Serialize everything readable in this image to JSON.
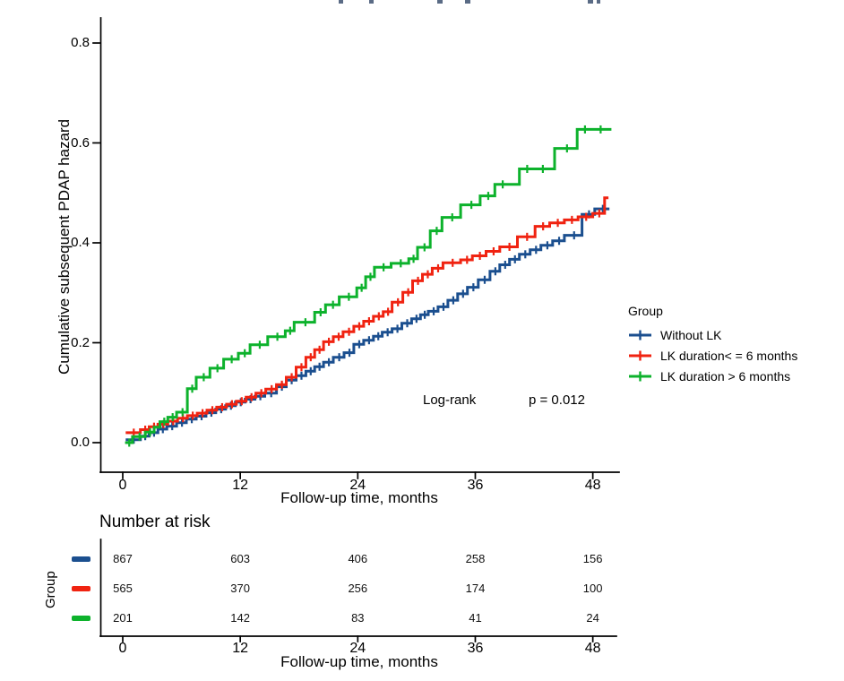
{
  "chart_data": {
    "type": "line",
    "subtype": "step_cumulative_hazard_km",
    "title": "",
    "ylabel": "Cumulative subsequent PDAP hazard",
    "xlabel": "Follow-up time, months",
    "xlim": [
      0,
      50
    ],
    "ylim": [
      0,
      0.8
    ],
    "xticks": [
      0,
      12,
      24,
      36,
      48
    ],
    "yticks": [
      "0.0",
      "0.2",
      "0.4",
      "0.6",
      "0.8"
    ],
    "grid": false,
    "legend_title": "Group",
    "legend_position": "right",
    "annotation": {
      "logrank_label": "Log-rank",
      "p_label": "p = 0.012"
    },
    "series": [
      {
        "name": "Without LK",
        "color": "#1B4F8F",
        "at_risk": [
          867,
          603,
          406,
          258,
          156
        ],
        "t_end": 49.7,
        "steps": [
          [
            0.3,
            0.006
          ],
          [
            1.8,
            0.013
          ],
          [
            2.7,
            0.02
          ],
          [
            3.6,
            0.027
          ],
          [
            4.5,
            0.033
          ],
          [
            5.5,
            0.04
          ],
          [
            6.5,
            0.047
          ],
          [
            7.5,
            0.053
          ],
          [
            8.5,
            0.06
          ],
          [
            9.5,
            0.067
          ],
          [
            10.5,
            0.074
          ],
          [
            11.5,
            0.081
          ],
          [
            12.5,
            0.087
          ],
          [
            13.5,
            0.093
          ],
          [
            14.5,
            0.099
          ],
          [
            15.7,
            0.112
          ],
          [
            16.7,
            0.125
          ],
          [
            17.7,
            0.134
          ],
          [
            18.7,
            0.143
          ],
          [
            19.6,
            0.152
          ],
          [
            20.5,
            0.161
          ],
          [
            21.5,
            0.171
          ],
          [
            22.6,
            0.18
          ],
          [
            23.6,
            0.197
          ],
          [
            24.6,
            0.205
          ],
          [
            25.6,
            0.213
          ],
          [
            26.5,
            0.221
          ],
          [
            27.5,
            0.228
          ],
          [
            28.5,
            0.239
          ],
          [
            29.5,
            0.248
          ],
          [
            30.4,
            0.256
          ],
          [
            31.2,
            0.263
          ],
          [
            32.2,
            0.272
          ],
          [
            33.2,
            0.285
          ],
          [
            34.2,
            0.298
          ],
          [
            35.2,
            0.311
          ],
          [
            36.3,
            0.326
          ],
          [
            37.5,
            0.343
          ],
          [
            38.5,
            0.356
          ],
          [
            39.5,
            0.367
          ],
          [
            40.5,
            0.377
          ],
          [
            41.6,
            0.386
          ],
          [
            42.7,
            0.395
          ],
          [
            43.9,
            0.404
          ],
          [
            45.1,
            0.415
          ],
          [
            46.9,
            0.457
          ],
          [
            48.2,
            0.468
          ]
        ]
      },
      {
        "name": "LK duration< = 6 months",
        "color": "#F02311",
        "at_risk": [
          565,
          370,
          256,
          174,
          100
        ],
        "t_end": 49.6,
        "steps": [
          [
            0.3,
            0.02
          ],
          [
            1.8,
            0.026
          ],
          [
            2.7,
            0.032
          ],
          [
            3.6,
            0.037
          ],
          [
            4.6,
            0.043
          ],
          [
            5.6,
            0.049
          ],
          [
            6.6,
            0.054
          ],
          [
            7.6,
            0.059
          ],
          [
            8.6,
            0.065
          ],
          [
            9.6,
            0.071
          ],
          [
            10.6,
            0.077
          ],
          [
            11.6,
            0.083
          ],
          [
            12.6,
            0.091
          ],
          [
            13.6,
            0.099
          ],
          [
            14.6,
            0.107
          ],
          [
            15.7,
            0.116
          ],
          [
            16.7,
            0.131
          ],
          [
            17.7,
            0.151
          ],
          [
            18.7,
            0.171
          ],
          [
            19.6,
            0.186
          ],
          [
            20.5,
            0.202
          ],
          [
            21.5,
            0.212
          ],
          [
            22.5,
            0.222
          ],
          [
            23.6,
            0.233
          ],
          [
            24.6,
            0.243
          ],
          [
            25.6,
            0.253
          ],
          [
            26.6,
            0.262
          ],
          [
            27.5,
            0.281
          ],
          [
            28.6,
            0.301
          ],
          [
            29.6,
            0.324
          ],
          [
            30.6,
            0.337
          ],
          [
            31.6,
            0.349
          ],
          [
            32.7,
            0.36
          ],
          [
            34.5,
            0.366
          ],
          [
            35.7,
            0.374
          ],
          [
            37.1,
            0.383
          ],
          [
            38.5,
            0.392
          ],
          [
            40.3,
            0.412
          ],
          [
            42.1,
            0.433
          ],
          [
            43.6,
            0.44
          ],
          [
            45.1,
            0.446
          ],
          [
            46.5,
            0.452
          ],
          [
            48.0,
            0.459
          ],
          [
            49.2,
            0.49
          ]
        ]
      },
      {
        "name": "LK duration > 6 months",
        "color": "#0DB22C",
        "at_risk": [
          201,
          142,
          83,
          41,
          24
        ],
        "t_end": 49.9,
        "steps": [
          [
            0.25,
            0.0
          ],
          [
            1.0,
            0.012
          ],
          [
            2.3,
            0.021
          ],
          [
            3.2,
            0.031
          ],
          [
            3.8,
            0.042
          ],
          [
            4.6,
            0.051
          ],
          [
            5.5,
            0.061
          ],
          [
            6.6,
            0.108
          ],
          [
            7.5,
            0.131
          ],
          [
            8.9,
            0.149
          ],
          [
            10.3,
            0.167
          ],
          [
            11.8,
            0.179
          ],
          [
            13.0,
            0.196
          ],
          [
            14.8,
            0.212
          ],
          [
            16.6,
            0.224
          ],
          [
            17.5,
            0.241
          ],
          [
            19.6,
            0.261
          ],
          [
            20.7,
            0.276
          ],
          [
            22.1,
            0.292
          ],
          [
            23.9,
            0.31
          ],
          [
            24.8,
            0.332
          ],
          [
            25.7,
            0.351
          ],
          [
            27.4,
            0.359
          ],
          [
            29.2,
            0.368
          ],
          [
            30.1,
            0.391
          ],
          [
            31.4,
            0.424
          ],
          [
            32.6,
            0.451
          ],
          [
            34.5,
            0.476
          ],
          [
            36.5,
            0.494
          ],
          [
            38.0,
            0.517
          ],
          [
            40.5,
            0.548
          ],
          [
            44.1,
            0.589
          ],
          [
            46.4,
            0.627
          ]
        ]
      }
    ],
    "number_at_risk": {
      "title": "Number at risk",
      "ylabel": "Group",
      "xlabel": "Follow-up time, months",
      "times": [
        0,
        12,
        24,
        36,
        48
      ]
    }
  }
}
